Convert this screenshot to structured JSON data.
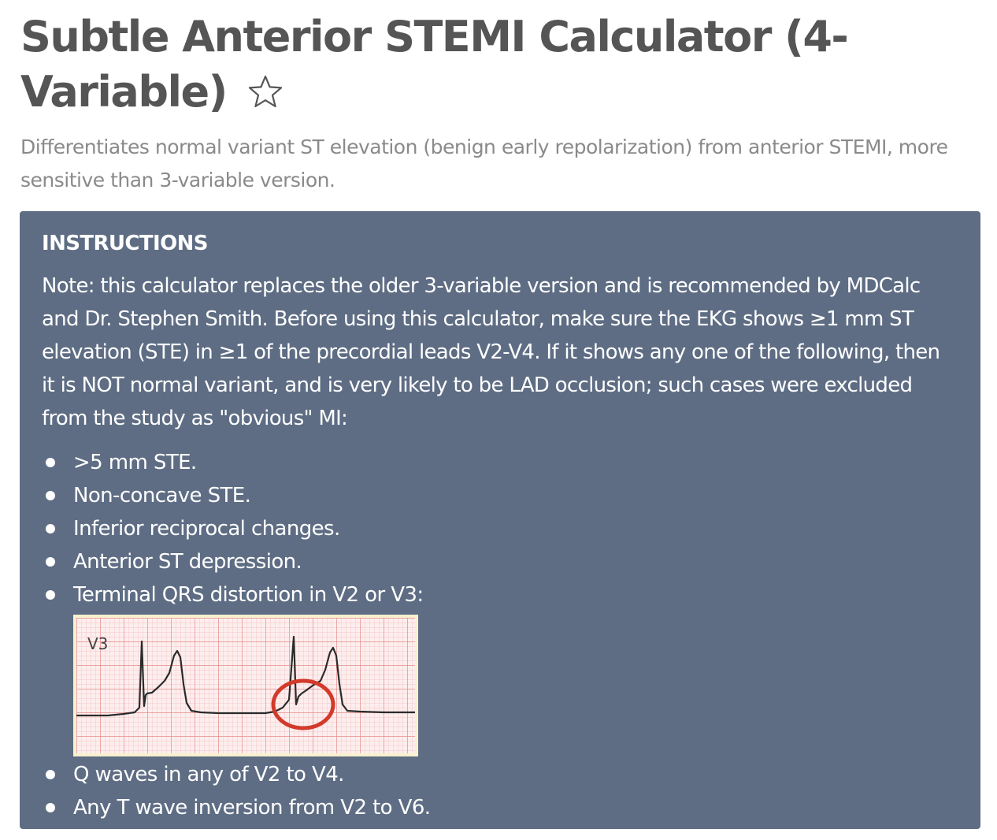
{
  "header": {
    "title": "Subtle Anterior STEMI Calculator (4-Variable)",
    "favorite_icon": "star-outline-icon",
    "description": "Differentiates normal variant ST elevation (benign early repolarization) from anterior STEMI, more sensitive than 3-variable version."
  },
  "instructions": {
    "heading": "INSTRUCTIONS",
    "note": "Note: this calculator replaces the older 3-variable version and is recommended by MDCalc and Dr. Stephen Smith. Before using this calculator, make sure the EKG shows ≥1 mm ST elevation (STE) in ≥1 of the precordial leads V2-V4. If it shows any one of the following, then it is NOT normal variant, and is very likely to be LAD occlusion; such cases were excluded from the study as \"obvious\" MI:",
    "bullets": [
      ">5 mm STE.",
      "Non-concave STE.",
      "Inferior reciprocal changes.",
      "Anterior ST depression.",
      "Terminal QRS distortion in V2 or V3:",
      "Q waves in any of V2 to V4.",
      "Any T wave inversion from V2 to V6."
    ],
    "ekg_image": {
      "lead_label": "V3",
      "colors": {
        "paper": "#fdeeee",
        "grid": "#e89a9a",
        "trace": "#2a2a2a",
        "circle": "#d23a2a",
        "frame": "#f8f0ce"
      }
    }
  },
  "colors": {
    "title": "#555555",
    "subtitle": "#8a8a8a",
    "panel_bg": "#5e6d84",
    "panel_text": "#ffffff"
  }
}
